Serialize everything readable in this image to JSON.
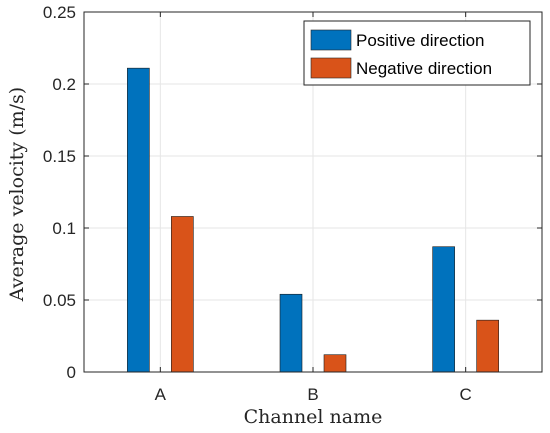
{
  "colors": {
    "positive": "#0072BD",
    "negative": "#D95319",
    "grid": "#e6e6e6",
    "axis": "#262626"
  },
  "chart_data": {
    "type": "bar",
    "categories": [
      "A",
      "B",
      "C"
    ],
    "series": [
      {
        "name": "Positive direction",
        "values": [
          0.211,
          0.054,
          0.087
        ]
      },
      {
        "name": "Negative direction",
        "values": [
          0.108,
          0.012,
          0.036
        ]
      }
    ],
    "xlabel": "Channel name",
    "ylabel": "Average velocity (m/s)",
    "ylim": [
      0,
      0.25
    ],
    "yticks": [
      "0",
      "0.05",
      "0.1",
      "0.15",
      "0.2",
      "0.25"
    ],
    "ytick_values": [
      0,
      0.05,
      0.1,
      0.15,
      0.2,
      0.25
    ],
    "grid": true,
    "legend_position": "top-right"
  }
}
